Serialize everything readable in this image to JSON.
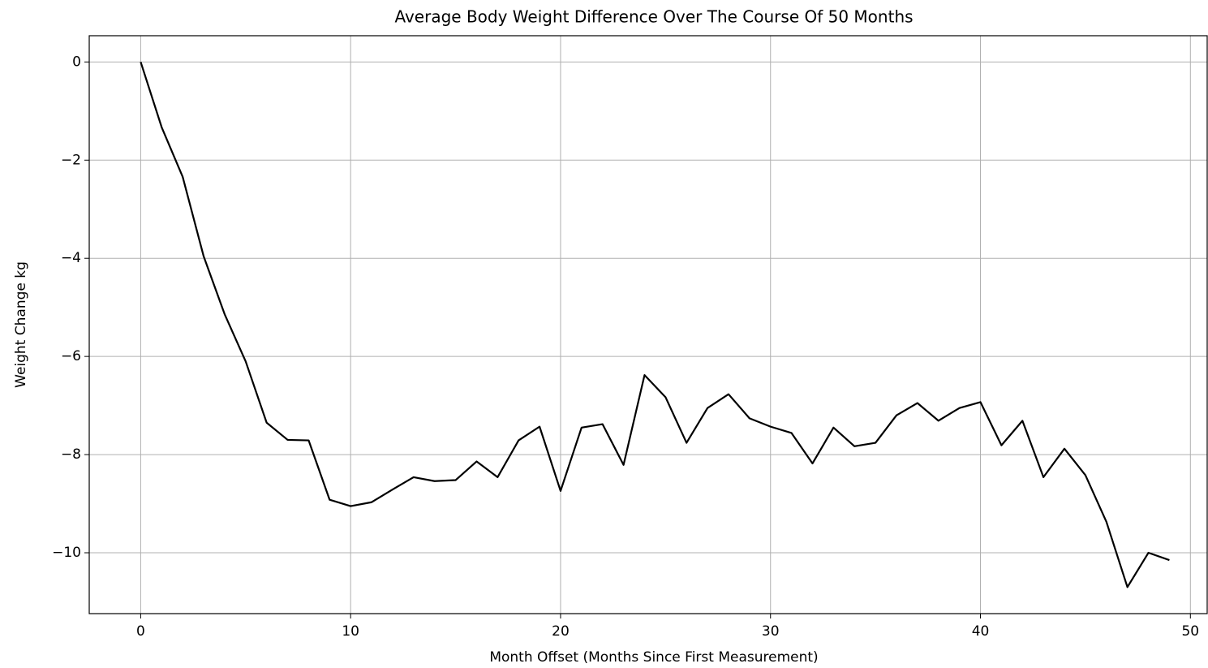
{
  "chart_data": {
    "type": "line",
    "title": "Average Body Weight Difference Over The Course Of 50 Months",
    "xlabel": "Month Offset (Months Since First Measurement)",
    "ylabel": "Weight Change kg",
    "x": [
      0,
      1,
      2,
      3,
      4,
      5,
      6,
      7,
      8,
      9,
      10,
      11,
      12,
      13,
      14,
      15,
      16,
      17,
      18,
      19,
      20,
      21,
      22,
      23,
      24,
      25,
      26,
      27,
      28,
      29,
      30,
      31,
      32,
      33,
      34,
      35,
      36,
      37,
      38,
      39,
      40,
      41,
      42,
      43,
      44,
      45,
      46,
      47,
      48,
      49
    ],
    "series": [
      {
        "name": "Weight Change",
        "color": "#000000",
        "values": [
          0,
          -1.33,
          -2.34,
          -3.96,
          -5.14,
          -6.1,
          -7.35,
          -7.7,
          -7.71,
          -8.92,
          -9.05,
          -8.97,
          -8.71,
          -8.46,
          -8.54,
          -8.52,
          -8.14,
          -8.46,
          -7.71,
          -7.43,
          -8.74,
          -7.45,
          -7.38,
          -8.21,
          -6.38,
          -6.83,
          -7.76,
          -7.05,
          -6.77,
          -7.26,
          -7.43,
          -7.56,
          -8.18,
          -7.45,
          -7.83,
          -7.76,
          -7.2,
          -6.95,
          -7.31,
          -7.05,
          -6.93,
          -7.81,
          -7.31,
          -8.46,
          -7.88,
          -8.42,
          -9.37,
          -10.7,
          -10.0,
          -10.15
        ]
      }
    ],
    "xlim": [
      -2.45,
      50.8
    ],
    "ylim": [
      -11.24,
      0.535
    ],
    "xticks": [
      0,
      10,
      20,
      30,
      40,
      50
    ],
    "yticks": [
      {
        "value": -10,
        "label": "−10"
      },
      {
        "value": -8,
        "label": "−8"
      },
      {
        "value": -6,
        "label": "−6"
      },
      {
        "value": -4,
        "label": "−4"
      },
      {
        "value": -2,
        "label": "−2"
      },
      0
    ],
    "grid": true
  }
}
